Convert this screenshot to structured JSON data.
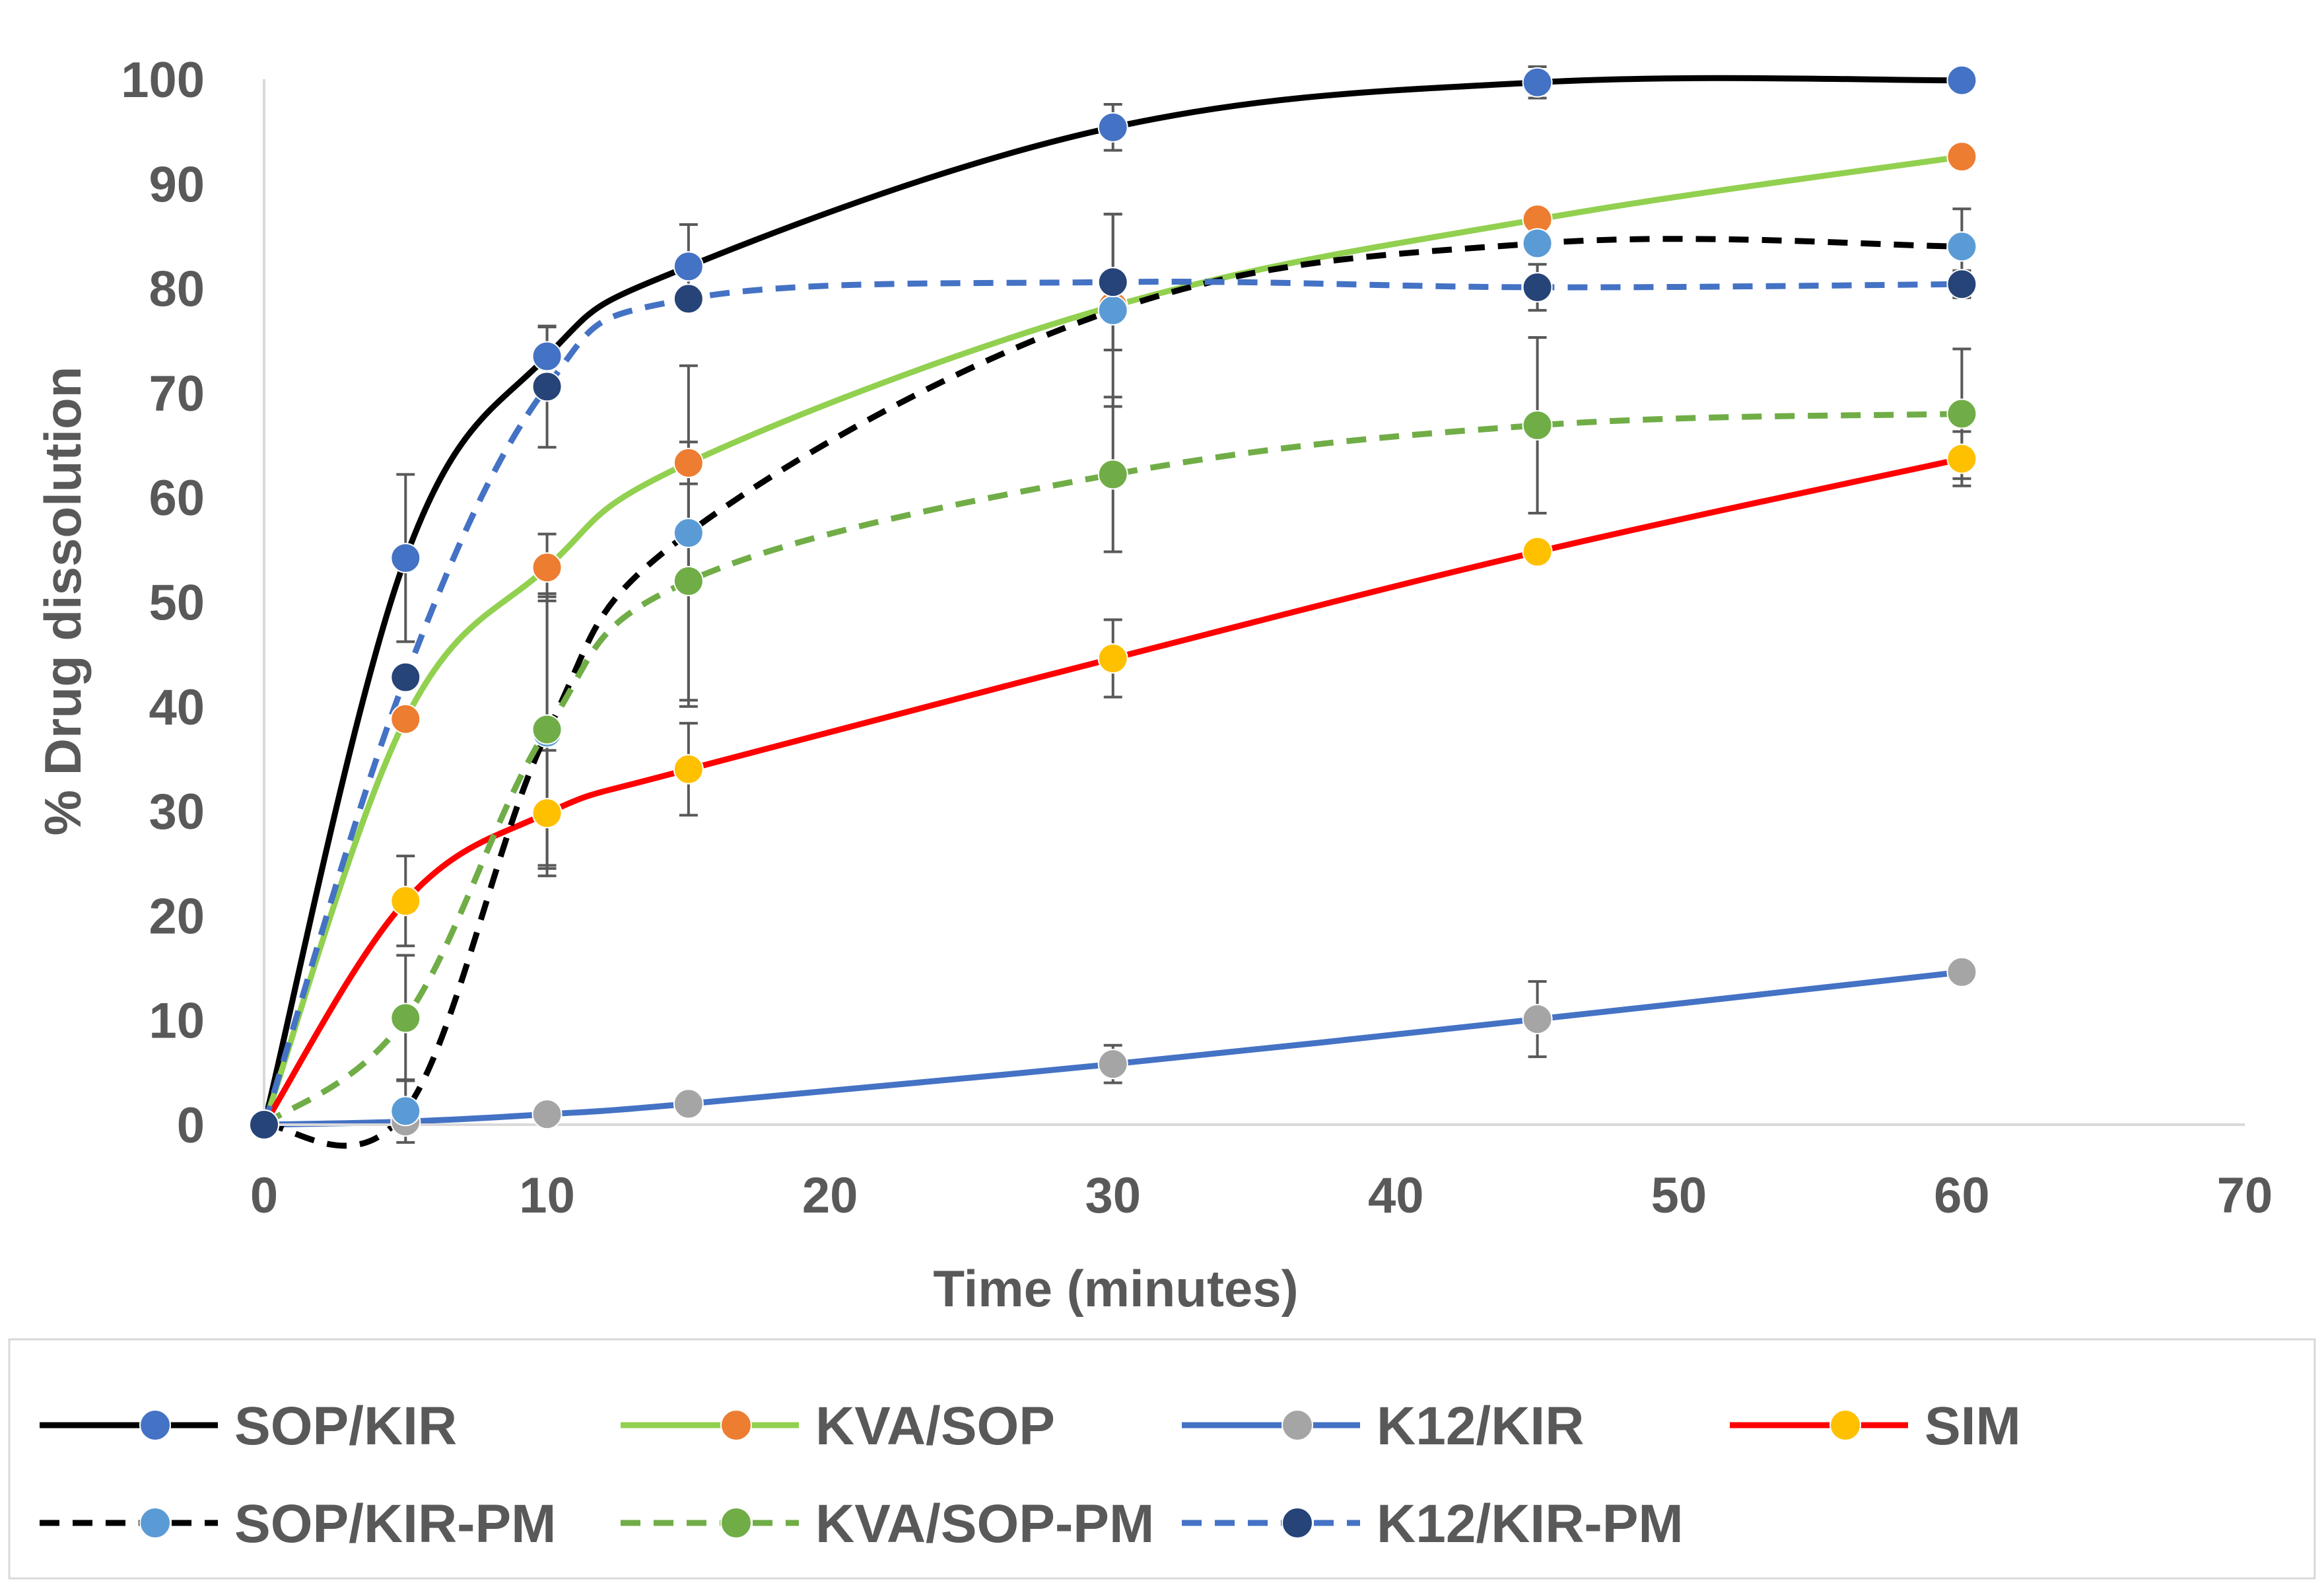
{
  "chart_data": {
    "type": "line",
    "title": "",
    "xlabel": "Time (minutes)",
    "ylabel": "% Drug dissolution",
    "xlim": [
      0,
      70
    ],
    "ylim": [
      0,
      100
    ],
    "xticks": [
      0,
      10,
      20,
      30,
      40,
      50,
      60,
      70
    ],
    "yticks": [
      0,
      10,
      20,
      30,
      40,
      50,
      60,
      70,
      80,
      90,
      100
    ],
    "grid": false,
    "legend_position": "bottom",
    "x": [
      0,
      5,
      10,
      15,
      30,
      45,
      60
    ],
    "series": [
      {
        "name": "SOP/KIR",
        "line_color": "#000000",
        "marker_color": "#4472C4",
        "dashed": false,
        "values": [
          0,
          54.2,
          73.5,
          82.1,
          95.4,
          99.7,
          99.9
        ],
        "errors": [
          0,
          8.0,
          2.8,
          4.0,
          2.2,
          1.5,
          0
        ]
      },
      {
        "name": "KVA/SOP",
        "line_color": "#92D050",
        "marker_color": "#ED7D31",
        "dashed": false,
        "values": [
          0,
          38.8,
          53.3,
          63.3,
          78.3,
          86.6,
          92.6
        ],
        "errors": [
          0,
          0,
          3.2,
          2.0,
          0,
          0,
          0
        ]
      },
      {
        "name": "K12/KIR",
        "line_color": "#4472C4",
        "marker_color": "#A5A5A5",
        "dashed": false,
        "values": [
          0,
          0.3,
          1.0,
          2.0,
          5.8,
          10.1,
          14.6
        ],
        "errors": [
          0,
          0,
          0,
          0,
          1.8,
          3.6,
          0
        ]
      },
      {
        "name": "SIM",
        "line_color": "#FF0000",
        "marker_color": "#FFC000",
        "dashed": false,
        "values": [
          0,
          21.4,
          29.8,
          34.0,
          44.6,
          54.8,
          63.7
        ],
        "errors": [
          0,
          4.3,
          6.0,
          4.4,
          3.7,
          0,
          2.6
        ]
      },
      {
        "name": "SOP/KIR-PM",
        "line_color": "#000000",
        "marker_color": "#5B9BD5",
        "dashed": true,
        "values": [
          0,
          1.3,
          37.5,
          56.6,
          77.9,
          84.3,
          84.0
        ],
        "errors": [
          0,
          3.0,
          13.0,
          16.0,
          9.2,
          0,
          3.6
        ]
      },
      {
        "name": "KVA/SOP-PM",
        "line_color": "#70AD47",
        "marker_color": "#70AD47",
        "dashed": true,
        "values": [
          0,
          10.2,
          37.8,
          52.0,
          62.2,
          66.9,
          68.0
        ],
        "errors": [
          0,
          6.0,
          13.0,
          12.0,
          7.4,
          8.4,
          6.2
        ]
      },
      {
        "name": "K12/KIR-PM",
        "line_color": "#4472C4",
        "marker_color": "#264478",
        "dashed": true,
        "values": [
          0,
          42.8,
          70.6,
          79.0,
          80.6,
          80.1,
          80.4
        ],
        "errors": [
          0,
          0,
          5.8,
          0,
          6.5,
          2.2,
          1.3
        ]
      }
    ]
  }
}
